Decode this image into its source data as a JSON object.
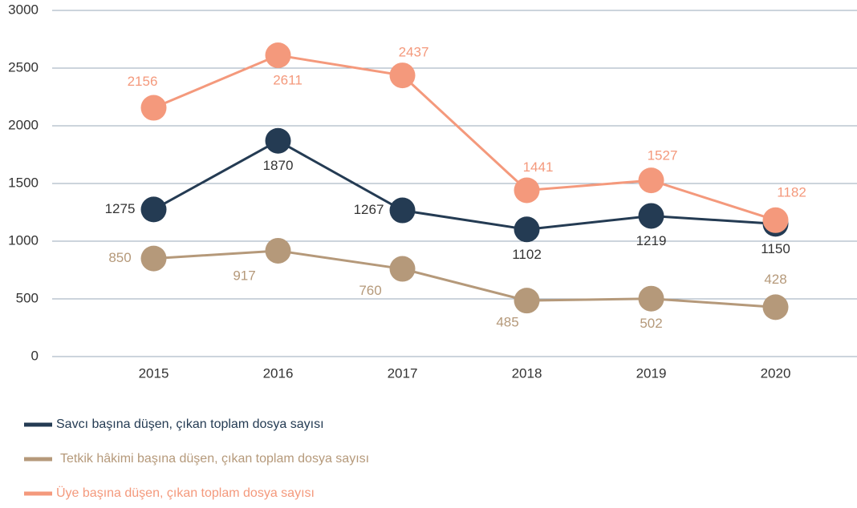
{
  "chart_data": {
    "type": "line",
    "categories": [
      "2015",
      "2016",
      "2017",
      "2018",
      "2019",
      "2020"
    ],
    "series": [
      {
        "name": "Savcı başına düşen, çıkan toplam dosya sayısı",
        "color": "#243b53",
        "values": [
          1275,
          1870,
          1267,
          1102,
          1219,
          1150
        ]
      },
      {
        "name": "Tetkik hâkimi başına düşen, çıkan toplam dosya sayısı",
        "color": "#b5997a",
        "values": [
          850,
          917,
          760,
          485,
          502,
          428
        ]
      },
      {
        "name": "Üye başına düşen, çıkan toplam dosya sayısı",
        "color": "#f4997c",
        "values": [
          2156,
          2611,
          2437,
          1441,
          1527,
          1182
        ]
      }
    ],
    "ylim": [
      0,
      3000
    ],
    "yticks": [
      0,
      500,
      1000,
      1500,
      2000,
      2500,
      3000
    ],
    "grid": true,
    "legend": "bottom"
  }
}
